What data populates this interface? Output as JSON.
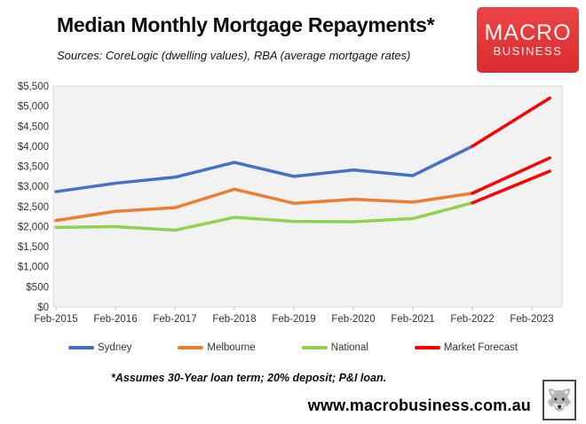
{
  "header": {
    "title": "Median Monthly Mortgage Repayments*",
    "subtitle": "Sources: CoreLogic (dwelling values), RBA (average mortgage rates)"
  },
  "logo": {
    "line1": "MACRO",
    "line2": "BUSINESS",
    "bg_color": "#e0383c"
  },
  "chart_data": {
    "type": "line",
    "title": "Median Monthly Mortgage Repayments*",
    "categories": [
      "Feb-2015",
      "Feb-2016",
      "Feb-2017",
      "Feb-2018",
      "Feb-2019",
      "Feb-2020",
      "Feb-2021",
      "Feb-2022",
      "Feb-2023"
    ],
    "ylim": [
      0,
      5500
    ],
    "ytick_step": 500,
    "ytick_labels": [
      "$5,500",
      "$5,000",
      "$4,500",
      "$4,000",
      "$3,500",
      "$3,000",
      "$2,500",
      "$2,000",
      "$1,500",
      "$1,000",
      "$500",
      "$0"
    ],
    "grid": false,
    "legend_position": "bottom",
    "plot_bg": "#f2f2f2",
    "plot_border": "#d9d9d9",
    "series": [
      {
        "name": "Sydney",
        "color": "#4472C4",
        "x": [
          0,
          1,
          2,
          3,
          4,
          5,
          6,
          7
        ],
        "values": [
          2870,
          3080,
          3230,
          3600,
          3250,
          3410,
          3270,
          4000
        ]
      },
      {
        "name": "Melbourne",
        "color": "#ED7D31",
        "x": [
          0,
          1,
          2,
          3,
          4,
          5,
          6,
          7
        ],
        "values": [
          2150,
          2380,
          2470,
          2930,
          2580,
          2680,
          2610,
          2830
        ]
      },
      {
        "name": "National",
        "color": "#92D050",
        "x": [
          0,
          1,
          2,
          3,
          4,
          5,
          6,
          7
        ],
        "values": [
          1980,
          2000,
          1910,
          2230,
          2130,
          2120,
          2200,
          2590
        ]
      },
      {
        "name": "Market Forecast",
        "color": "#FF0000",
        "segments": [
          {
            "x": [
              7,
              8.3
            ],
            "values": [
              4000,
              5200
            ]
          },
          {
            "x": [
              7,
              8.3
            ],
            "values": [
              2830,
              3710
            ]
          },
          {
            "x": [
              7,
              8.3
            ],
            "values": [
              2590,
              3380
            ]
          }
        ]
      }
    ]
  },
  "legend": {
    "items": [
      {
        "label": "Sydney",
        "color": "#4472C4"
      },
      {
        "label": "Melbourne",
        "color": "#ED7D31"
      },
      {
        "label": "National",
        "color": "#92D050"
      },
      {
        "label": "Market Forecast",
        "color": "#FF0000"
      }
    ]
  },
  "footer": {
    "note": "*Assumes 30-Year loan term; 20% deposit; P&I loan.",
    "website": "www.macrobusiness.com.au"
  }
}
